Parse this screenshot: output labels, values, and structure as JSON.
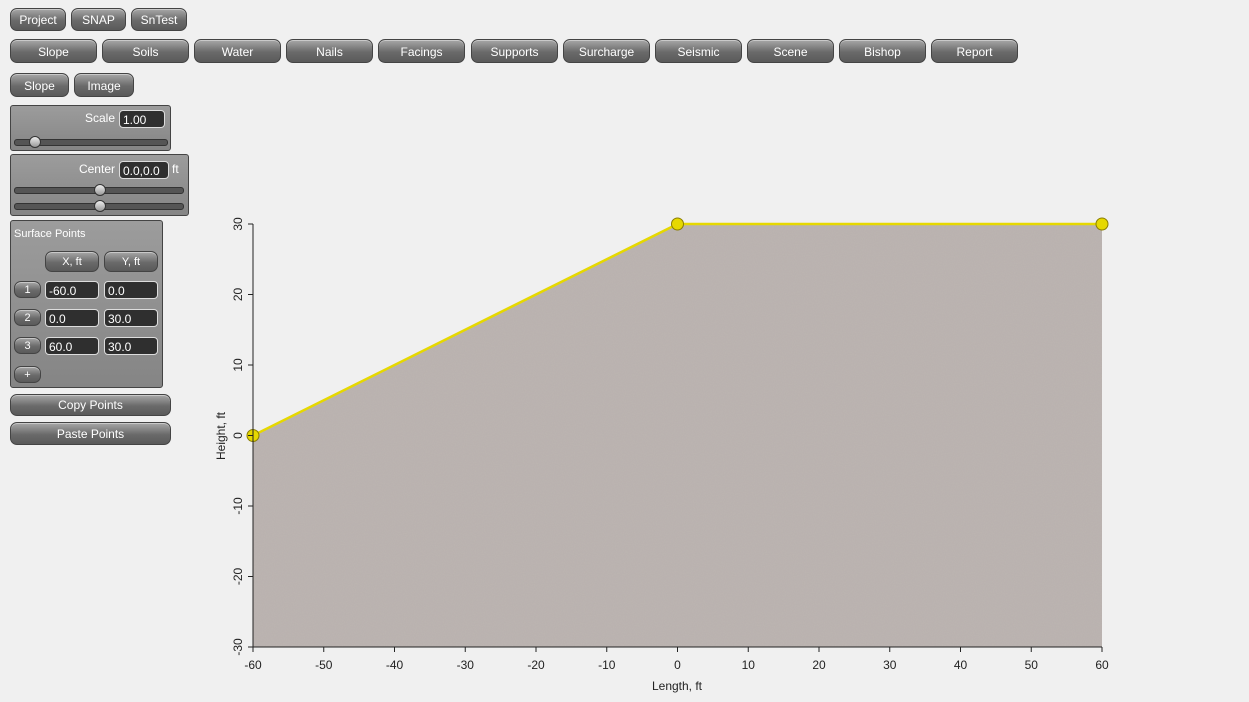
{
  "top_menu": [
    "Project",
    "SNAP",
    "SnTest"
  ],
  "tabs": [
    "Slope",
    "Soils",
    "Water",
    "Nails",
    "Facings",
    "Supports",
    "Surcharge",
    "Seismic",
    "Scene",
    "Bishop",
    "Report"
  ],
  "sub_tabs": [
    "Slope",
    "Image"
  ],
  "scale_panel": {
    "label": "Scale",
    "value": "1.00"
  },
  "center_panel": {
    "label": "Center",
    "value": "0.0,0.0",
    "unit": "ft"
  },
  "surface_points": {
    "title": "Surface Points",
    "headers": [
      "X, ft",
      "Y, ft"
    ],
    "rows": [
      {
        "index": "1",
        "x": "-60.0",
        "y": "0.0"
      },
      {
        "index": "2",
        "x": "0.0",
        "y": "30.0"
      },
      {
        "index": "3",
        "x": "60.0",
        "y": "30.0"
      }
    ],
    "add": "+"
  },
  "buttons": [
    "Copy Points",
    "Paste Points"
  ],
  "chart_data": {
    "type": "area",
    "xlabel": "Length, ft",
    "ylabel": "Height, ft",
    "x": [
      -60,
      0,
      60
    ],
    "values": [
      0,
      30,
      30
    ],
    "color": "#e6d800",
    "fill": "#bdb5b1",
    "xlim": [
      -60,
      60
    ],
    "ylim": [
      -30,
      30
    ],
    "xticks": [
      -60,
      -50,
      -40,
      -30,
      -20,
      -10,
      0,
      10,
      20,
      30,
      40,
      50,
      60
    ],
    "yticks": [
      -30,
      -20,
      -10,
      0,
      10,
      20,
      30
    ]
  }
}
